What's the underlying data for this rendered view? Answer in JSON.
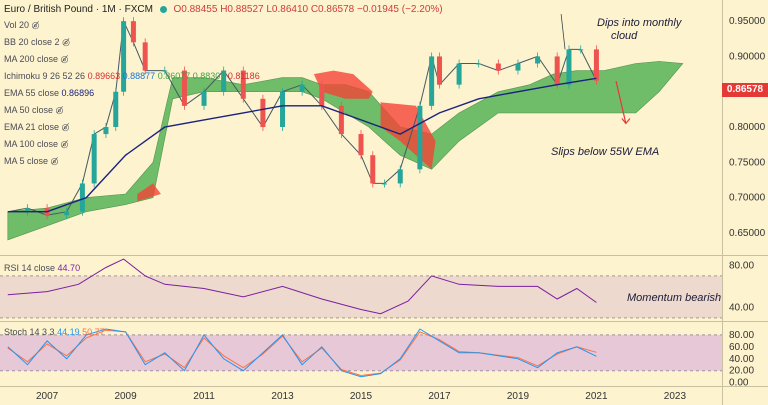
{
  "header": {
    "symbol": "Euro / British Pound · 1M · FXCM",
    "ohlc": "O0.88455 H0.88527 L0.86410 C0.86578 −0.01945 (−2.20%)"
  },
  "indicators": {
    "vol": "Vol 20",
    "bb": "BB 20 close 2",
    "ma200": "MA 200 close",
    "ichimoku_label": "Ichimoku 9 26 52 26",
    "ichimoku_values": [
      "0.89663",
      "0.88877",
      "0.86077",
      "0.88307",
      "0.81186"
    ],
    "ema55_label": "EMA 55 close",
    "ema55_value": "0.86896",
    "ma50": "MA 50 close",
    "ema21": "EMA 21 close",
    "ma100": "MA 100 close",
    "ma5": "MA 5 close",
    "rsi_label": "RSI 14 close",
    "rsi_value": "44.70",
    "stoch_label": "Stoch 14 3 3",
    "stoch_k": "44.19",
    "stoch_d": "50.77"
  },
  "annotations": {
    "dips_line1": "Dips into  monthly",
    "dips_line2": "cloud",
    "slips": "Slips below 55W EMA",
    "momentum": "Momentum bearish"
  },
  "price_label": "0.86578",
  "colors": {
    "bull": "#26a69a",
    "bear": "#ef5350",
    "cloud_bull": "#4caf50",
    "cloud_bear": "#f44336",
    "ema55": "#1a237e",
    "rsi": "#7b1fa2",
    "stoch_k": "#2196f3",
    "stoch_d": "#ff7043"
  },
  "chart_data": {
    "type": "line",
    "title": "Euro / British Pound · 1M · FXCM",
    "main_axis": {
      "ylim": [
        0.62,
        0.98
      ],
      "ticks": [
        "0.65000",
        "0.70000",
        "0.75000",
        "0.80000",
        "0.85000",
        "0.90000",
        "0.95000"
      ]
    },
    "x_ticks": [
      "2007",
      "2009",
      "2011",
      "2013",
      "2015",
      "2017",
      "2019",
      "2021",
      "2023"
    ],
    "x_tick_years": [
      2007,
      2009,
      2011,
      2013,
      2015,
      2017,
      2019,
      2021,
      2023
    ],
    "x_range": [
      2005.8,
      2024.2
    ],
    "price_series": {
      "name": "EUR/GBP",
      "x": [
        2006.0,
        2006.5,
        2007.0,
        2007.5,
        2007.9,
        2008.2,
        2008.5,
        2008.75,
        2008.95,
        2009.2,
        2009.5,
        2010.0,
        2010.5,
        2011.0,
        2011.5,
        2012.0,
        2012.5,
        2013.0,
        2013.5,
        2014.0,
        2014.5,
        2015.0,
        2015.3,
        2015.6,
        2016.0,
        2016.5,
        2016.8,
        2017.0,
        2017.5,
        2018.0,
        2018.5,
        2019.0,
        2019.5,
        2020.0,
        2020.3,
        2020.6,
        2021.0
      ],
      "y": [
        0.68,
        0.685,
        0.675,
        0.68,
        0.72,
        0.79,
        0.8,
        0.85,
        0.95,
        0.92,
        0.88,
        0.88,
        0.83,
        0.85,
        0.88,
        0.84,
        0.8,
        0.85,
        0.86,
        0.83,
        0.79,
        0.76,
        0.72,
        0.72,
        0.74,
        0.83,
        0.9,
        0.86,
        0.89,
        0.89,
        0.88,
        0.89,
        0.9,
        0.86,
        0.91,
        0.91,
        0.86578
      ]
    },
    "ema55": {
      "x": [
        2006,
        2007,
        2008,
        2009,
        2010,
        2011,
        2012,
        2013,
        2014,
        2015,
        2016,
        2017,
        2018,
        2019,
        2020,
        2021
      ],
      "y": [
        0.68,
        0.68,
        0.7,
        0.76,
        0.8,
        0.81,
        0.82,
        0.83,
        0.83,
        0.81,
        0.79,
        0.82,
        0.84,
        0.85,
        0.86,
        0.869
      ]
    },
    "cloud_top": {
      "x": [
        2006,
        2007,
        2008,
        2009,
        2009.7,
        2010.2,
        2011,
        2012,
        2013,
        2013.5,
        2014,
        2014.6,
        2015.2,
        2016,
        2016.8,
        2017.5,
        2018.5,
        2019.3,
        2019.9,
        2020.5,
        2021.2,
        2022,
        2022.6,
        2023.2
      ],
      "y": [
        0.68,
        0.685,
        0.7,
        0.705,
        0.75,
        0.87,
        0.87,
        0.86,
        0.87,
        0.87,
        0.86,
        0.86,
        0.85,
        0.8,
        0.79,
        0.82,
        0.85,
        0.86,
        0.875,
        0.88,
        0.88,
        0.89,
        0.893,
        0.89
      ]
    },
    "cloud_bottom": {
      "x": [
        2006,
        2007,
        2008,
        2009,
        2009.7,
        2010.2,
        2011,
        2012,
        2013,
        2013.5,
        2014,
        2014.6,
        2015.2,
        2016,
        2016.8,
        2017.5,
        2018.5,
        2019.3,
        2019.9,
        2020.5,
        2021.2,
        2022,
        2022.6,
        2023.2
      ],
      "y": [
        0.64,
        0.66,
        0.68,
        0.69,
        0.7,
        0.84,
        0.85,
        0.85,
        0.85,
        0.85,
        0.84,
        0.82,
        0.8,
        0.76,
        0.74,
        0.78,
        0.82,
        0.82,
        0.82,
        0.82,
        0.82,
        0.82,
        0.85,
        0.89
      ]
    },
    "rsi": {
      "ylim": [
        28,
        88
      ],
      "ticks": [
        "40.00",
        "80.00"
      ],
      "x": [
        2006,
        2007,
        2007.8,
        2008.5,
        2008.95,
        2009.5,
        2010,
        2011,
        2012,
        2013,
        2014,
        2015,
        2015.5,
        2016.2,
        2016.8,
        2017.5,
        2018.5,
        2019.5,
        2020,
        2020.5,
        2021
      ],
      "y": [
        52,
        55,
        62,
        78,
        86,
        70,
        62,
        58,
        50,
        60,
        48,
        38,
        34,
        46,
        70,
        62,
        60,
        60,
        48,
        58,
        44.7
      ]
    },
    "stoch": {
      "ylim": [
        -4,
        100
      ],
      "ticks": [
        "0.00",
        "20.00",
        "40.00",
        "60.00",
        "80.00"
      ],
      "x": [
        2006,
        2006.5,
        2007,
        2007.5,
        2008,
        2008.5,
        2009,
        2009.5,
        2010,
        2010.5,
        2011,
        2011.5,
        2012,
        2012.5,
        2013,
        2013.5,
        2014,
        2014.5,
        2015,
        2015.5,
        2016,
        2016.5,
        2017,
        2017.5,
        2018,
        2018.5,
        2019,
        2019.5,
        2020,
        2020.5,
        2021
      ],
      "k": [
        60,
        30,
        70,
        40,
        80,
        90,
        85,
        30,
        50,
        20,
        80,
        40,
        20,
        50,
        80,
        30,
        60,
        20,
        10,
        15,
        40,
        90,
        70,
        50,
        50,
        45,
        40,
        25,
        50,
        60,
        44.19
      ],
      "d": [
        58,
        35,
        65,
        45,
        75,
        88,
        85,
        35,
        48,
        25,
        75,
        45,
        25,
        48,
        78,
        35,
        58,
        22,
        12,
        16,
        38,
        85,
        72,
        52,
        50,
        46,
        42,
        28,
        48,
        60,
        50.77
      ]
    }
  }
}
